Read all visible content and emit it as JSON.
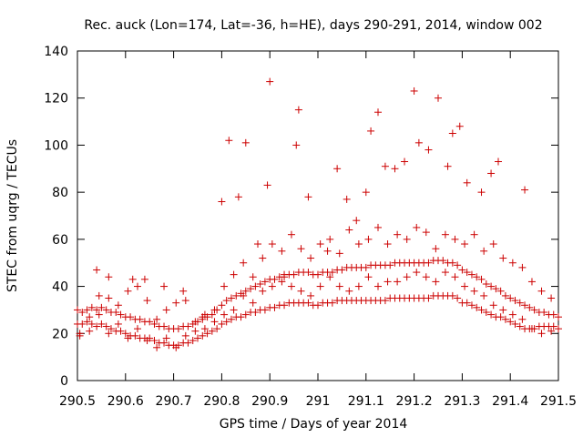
{
  "chart_data": {
    "type": "scatter",
    "title": "Rec. auck (Lon=174, Lat=-36, h=HE), days 290-291, 2014, window 002",
    "xlabel": "GPS time / Days of year 2014",
    "ylabel": "STEC from uqrg / TECUs",
    "xlim": [
      290.5,
      291.5
    ],
    "ylim": [
      0,
      140
    ],
    "xticks": [
      290.5,
      290.6,
      290.7,
      290.8,
      290.9,
      291.0,
      291.1,
      291.2,
      291.3,
      291.4,
      291.5
    ],
    "xtick_labels": [
      "290.5",
      "290.6",
      "290.7",
      "290.8",
      "290.9",
      "291",
      "291.1",
      "291.2",
      "291.3",
      "291.4",
      "291.5"
    ],
    "yticks": [
      0,
      20,
      40,
      60,
      80,
      100,
      120,
      140
    ],
    "ytick_labels": [
      "0",
      "20",
      "40",
      "60",
      "80",
      "100",
      "120",
      "140"
    ],
    "marker": "+",
    "marker_color": "#cc0000",
    "grid": false,
    "series": [
      {
        "name": "STEC",
        "x": [
          290.5,
          290.51,
          290.52,
          290.53,
          290.54,
          290.55,
          290.56,
          290.57,
          290.58,
          290.59,
          290.6,
          290.61,
          290.62,
          290.63,
          290.64,
          290.65,
          290.66,
          290.67,
          290.68,
          290.69,
          290.7,
          290.71,
          290.72,
          290.73,
          290.74,
          290.75,
          290.76,
          290.77,
          290.78,
          290.79,
          290.8,
          290.81,
          290.82,
          290.83,
          290.84,
          290.85,
          290.86,
          290.87,
          290.88,
          290.89,
          290.9,
          290.91,
          290.92,
          290.93,
          290.94,
          290.95,
          290.96,
          290.97,
          290.98,
          290.99,
          291.0,
          291.01,
          291.02,
          291.03,
          291.04,
          291.05,
          291.06,
          291.07,
          291.08,
          291.09,
          291.1,
          291.11,
          291.12,
          291.13,
          291.14,
          291.15,
          291.16,
          291.17,
          291.18,
          291.19,
          291.2,
          291.21,
          291.22,
          291.23,
          291.24,
          291.25,
          291.26,
          291.27,
          291.28,
          291.29,
          291.3,
          291.31,
          291.32,
          291.33,
          291.34,
          291.35,
          291.36,
          291.37,
          291.38,
          291.39,
          291.4,
          291.41,
          291.42,
          291.43,
          291.44,
          291.45,
          291.46,
          291.47,
          291.48,
          291.49,
          291.5,
          290.5,
          290.51,
          290.52,
          290.53,
          290.54,
          290.55,
          290.56,
          290.57,
          290.58,
          290.59,
          290.6,
          290.61,
          290.62,
          290.63,
          290.64,
          290.65,
          290.66,
          290.67,
          290.68,
          290.69,
          290.7,
          290.71,
          290.72,
          290.73,
          290.74,
          290.75,
          290.76,
          290.77,
          290.78,
          290.79,
          290.8,
          290.81,
          290.82,
          290.83,
          290.84,
          290.85,
          290.86,
          290.87,
          290.88,
          290.89,
          290.9,
          290.91,
          290.92,
          290.93,
          290.94,
          290.95,
          290.96,
          290.97,
          290.98,
          290.99,
          291.0,
          291.01,
          291.02,
          291.03,
          291.04,
          291.05,
          291.06,
          291.07,
          291.08,
          291.09,
          291.1,
          291.11,
          291.12,
          291.13,
          291.14,
          291.15,
          291.16,
          291.17,
          291.18,
          291.19,
          291.2,
          291.21,
          291.22,
          291.23,
          291.24,
          291.25,
          291.26,
          291.27,
          291.28,
          291.29,
          291.3,
          291.31,
          291.32,
          291.33,
          291.34,
          291.35,
          291.36,
          291.37,
          291.38,
          291.39,
          291.4,
          291.41,
          291.42,
          291.43,
          291.44,
          291.45,
          291.46,
          291.47,
          291.48,
          291.49,
          291.5,
          290.505,
          290.525,
          290.545,
          290.565,
          290.585,
          290.605,
          290.625,
          290.645,
          290.665,
          290.685,
          290.705,
          290.725,
          290.745,
          290.765,
          290.785,
          290.805,
          290.825,
          290.845,
          290.865,
          290.885,
          290.905,
          290.925,
          290.945,
          290.965,
          290.985,
          291.005,
          291.025,
          291.045,
          291.065,
          291.085,
          291.105,
          291.125,
          291.145,
          291.165,
          291.185,
          291.205,
          291.225,
          291.245,
          291.265,
          291.285,
          291.305,
          291.325,
          291.345,
          291.365,
          291.385,
          291.405,
          291.425,
          291.445,
          291.465,
          291.485,
          290.505,
          290.525,
          290.545,
          290.565,
          290.585,
          290.605,
          290.625,
          290.645,
          290.665,
          290.685,
          290.705,
          290.725,
          290.745,
          290.765,
          290.785,
          290.805,
          290.825,
          290.845,
          290.865,
          290.885,
          290.905,
          290.925,
          290.945,
          290.965,
          290.985,
          291.005,
          291.025,
          291.045,
          291.065,
          291.085,
          291.105,
          291.125,
          291.145,
          291.165,
          291.185,
          291.205,
          291.225,
          291.245,
          291.265,
          291.285,
          291.305,
          291.325,
          291.345,
          291.365,
          291.385,
          291.405,
          291.425,
          291.445,
          291.465,
          291.485,
          290.8,
          290.815,
          290.835,
          290.85,
          290.875,
          290.895,
          290.9,
          290.93,
          290.955,
          290.96,
          290.98,
          291.02,
          291.04,
          291.06,
          291.08,
          291.1,
          291.11,
          291.125,
          291.14,
          291.16,
          291.18,
          291.2,
          291.21,
          291.23,
          291.25,
          291.27,
          291.28,
          291.295,
          291.31,
          291.34,
          291.36,
          291.375,
          291.43,
          290.54,
          290.565,
          290.615,
          290.64,
          290.68,
          290.72,
          290.76
        ],
        "y": [
          24,
          24,
          25,
          24,
          23,
          24,
          23,
          22,
          21,
          21,
          20,
          19,
          19,
          18,
          18,
          18,
          17,
          16,
          16,
          15,
          15,
          15,
          16,
          16,
          17,
          18,
          19,
          20,
          21,
          22,
          24,
          25,
          26,
          27,
          27,
          28,
          29,
          29,
          30,
          30,
          31,
          31,
          32,
          32,
          33,
          33,
          33,
          33,
          33,
          32,
          32,
          33,
          33,
          33,
          34,
          34,
          34,
          34,
          34,
          34,
          34,
          34,
          34,
          34,
          34,
          35,
          35,
          35,
          35,
          35,
          35,
          35,
          35,
          35,
          36,
          36,
          36,
          36,
          36,
          35,
          33,
          33,
          32,
          31,
          30,
          29,
          28,
          27,
          27,
          26,
          25,
          24,
          23,
          22,
          22,
          22,
          23,
          23,
          23,
          23,
          22,
          30,
          29,
          30,
          31,
          30,
          31,
          30,
          29,
          29,
          28,
          27,
          27,
          26,
          26,
          25,
          25,
          24,
          23,
          23,
          22,
          22,
          22,
          23,
          23,
          24,
          25,
          26,
          27,
          28,
          30,
          32,
          34,
          35,
          36,
          37,
          38,
          39,
          40,
          41,
          42,
          43,
          43,
          44,
          44,
          45,
          45,
          46,
          46,
          46,
          45,
          45,
          46,
          46,
          46,
          47,
          47,
          48,
          48,
          48,
          48,
          48,
          49,
          49,
          49,
          49,
          49,
          50,
          50,
          50,
          50,
          50,
          50,
          50,
          50,
          51,
          51,
          51,
          50,
          50,
          49,
          47,
          46,
          45,
          44,
          43,
          41,
          40,
          39,
          38,
          36,
          35,
          34,
          33,
          32,
          31,
          30,
          29,
          29,
          28,
          28,
          27,
          20,
          27,
          36,
          35,
          32,
          38,
          40,
          34,
          26,
          30,
          33,
          34,
          25,
          28,
          30,
          40,
          45,
          50,
          44,
          52,
          58,
          55,
          62,
          56,
          52,
          58,
          60,
          54,
          64,
          58,
          60,
          65,
          58,
          62,
          60,
          65,
          63,
          56,
          62,
          60,
          58,
          62,
          55,
          58,
          52,
          50,
          48,
          42,
          38,
          35,
          19,
          21,
          28,
          20,
          24,
          18,
          22,
          17,
          14,
          18,
          14,
          19,
          21,
          22,
          25,
          28,
          30,
          36,
          33,
          38,
          40,
          42,
          40,
          38,
          36,
          40,
          44,
          40,
          38,
          40,
          44,
          40,
          42,
          42,
          44,
          46,
          44,
          42,
          46,
          44,
          40,
          38,
          36,
          32,
          30,
          28,
          26,
          22,
          20,
          21,
          76,
          102,
          78,
          101,
          58,
          83,
          127,
          45,
          100,
          115,
          78,
          55,
          90,
          77,
          68,
          80,
          106,
          114,
          91,
          90,
          93,
          123,
          101,
          98,
          120,
          91,
          105,
          108,
          84,
          80,
          88,
          93,
          81,
          47,
          44,
          43,
          43,
          40,
          38,
          27
        ]
      }
    ]
  }
}
